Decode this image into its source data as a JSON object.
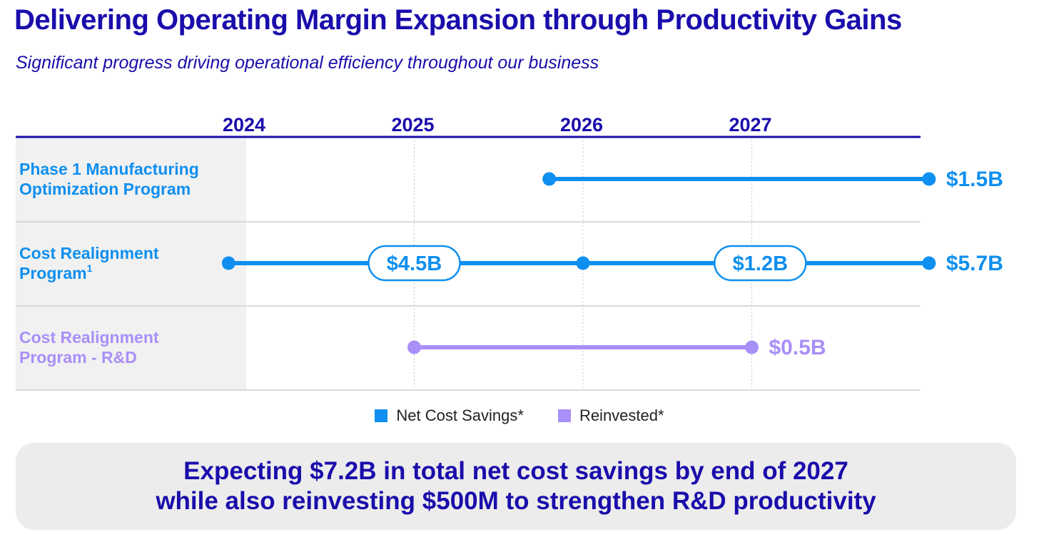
{
  "title": "Delivering Operating Margin Expansion through Productivity Gains",
  "subtitle": "Significant progress driving operational efficiency throughout our business",
  "colors": {
    "title": "#1a0dab",
    "net_cost_savings": "#0f8fef",
    "reinvested": "#a98ff8",
    "row_label_bg": "#f1f1f1",
    "callout_bg": "#ececec"
  },
  "chart_data": {
    "type": "timeline",
    "years": [
      "2024",
      "2025",
      "2026",
      "2027"
    ],
    "rows": [
      {
        "label_lines": [
          "Phase 1 Manufacturing",
          "Optimization Program"
        ],
        "superscript": "",
        "series": "Net Cost Savings*",
        "start": 2025.8,
        "end": 2028.05,
        "milestones": [],
        "total_label": "$1.5B"
      },
      {
        "label_lines": [
          "Cost Realignment",
          "Program"
        ],
        "superscript": "1",
        "series": "Net Cost Savings*",
        "start": 2023.9,
        "end": 2028.05,
        "milestones": [
          2026
        ],
        "segment_labels": [
          {
            "text": "$4.5B",
            "at": 2025
          },
          {
            "text": "$1.2B",
            "at": 2027.05
          }
        ],
        "total_label": "$5.7B"
      },
      {
        "label_lines": [
          "Cost Realignment",
          "Program - R&D"
        ],
        "superscript": "",
        "series": "Reinvested*",
        "start": 2025,
        "end": 2027,
        "milestones": [],
        "total_label": "$0.5B"
      }
    ]
  },
  "legend": [
    {
      "label": "Net Cost Savings*",
      "color": "#0f8fef"
    },
    {
      "label": "Reinvested*",
      "color": "#a98ff8"
    }
  ],
  "callout": {
    "line1": "Expecting $7.2B in total net cost savings by end of 2027",
    "line2": "while also reinvesting $500M to strengthen R&D productivity"
  }
}
